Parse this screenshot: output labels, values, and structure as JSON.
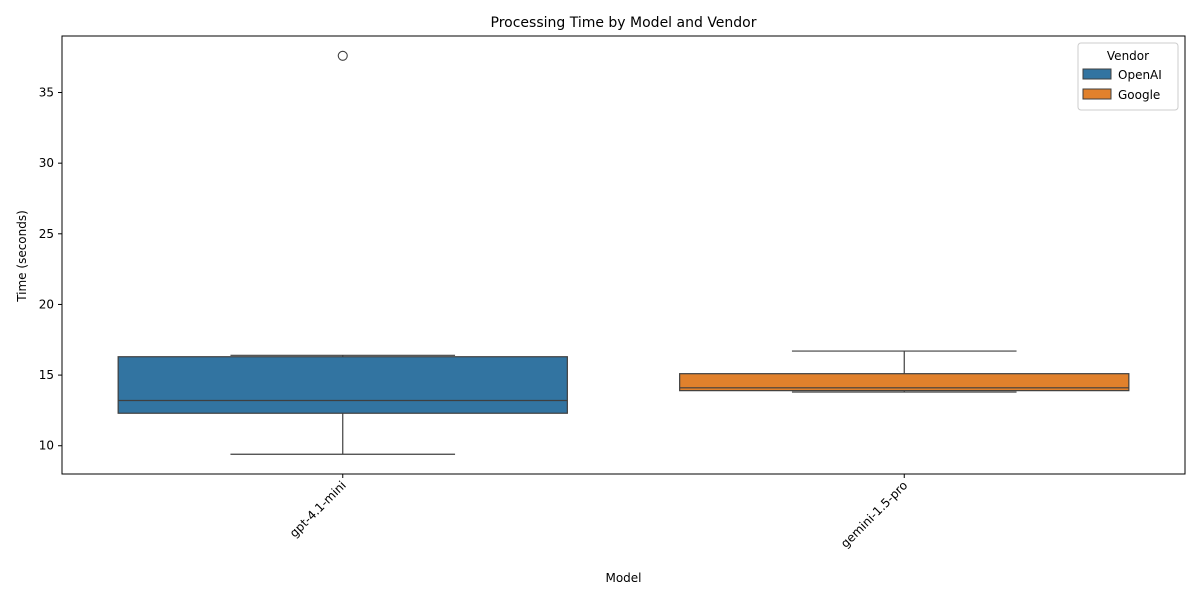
{
  "chart_data": {
    "type": "box",
    "title": "Processing Time by Model and Vendor",
    "xlabel": "Model",
    "ylabel": "Time (seconds)",
    "ylim": [
      8,
      39
    ],
    "yticks": [
      10,
      15,
      20,
      25,
      30,
      35
    ],
    "categories": [
      "gpt-4.1-mini",
      "gemini-1.5-pro"
    ],
    "legend": {
      "title": "Vendor",
      "position": "top-right"
    },
    "grid": false,
    "series": [
      {
        "name": "OpenAI",
        "color": "#3274a1",
        "category": "gpt-4.1-mini",
        "whisker_low": 9.4,
        "q1": 12.3,
        "median": 13.2,
        "q3": 16.3,
        "whisker_high": 16.4,
        "outliers": [
          37.6
        ]
      },
      {
        "name": "Google",
        "color": "#e1812c",
        "category": "gemini-1.5-pro",
        "whisker_low": 13.8,
        "q1": 13.9,
        "median": 14.1,
        "q3": 15.1,
        "whisker_high": 16.7,
        "outliers": []
      }
    ]
  }
}
